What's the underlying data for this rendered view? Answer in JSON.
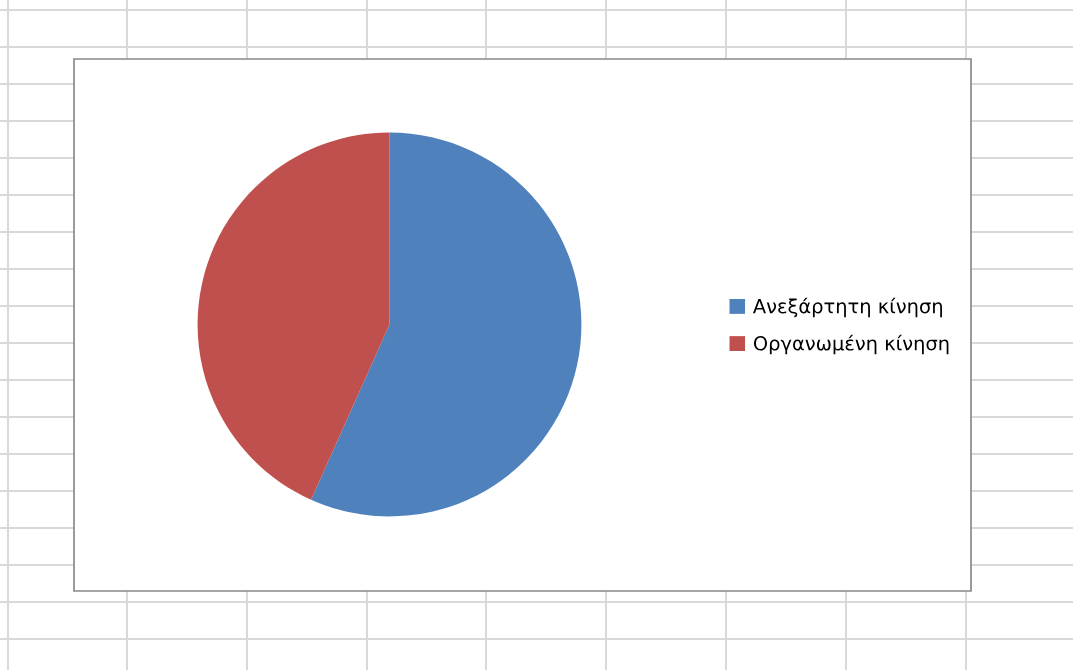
{
  "chart_data": {
    "type": "pie",
    "categories": [
      "Ανεξάρτητη κίνηση",
      "Οργανωμένη κίνηση"
    ],
    "values": [
      56.7,
      43.3
    ],
    "colors": [
      "#4f81bd",
      "#c0504d"
    ],
    "legend": "right"
  }
}
